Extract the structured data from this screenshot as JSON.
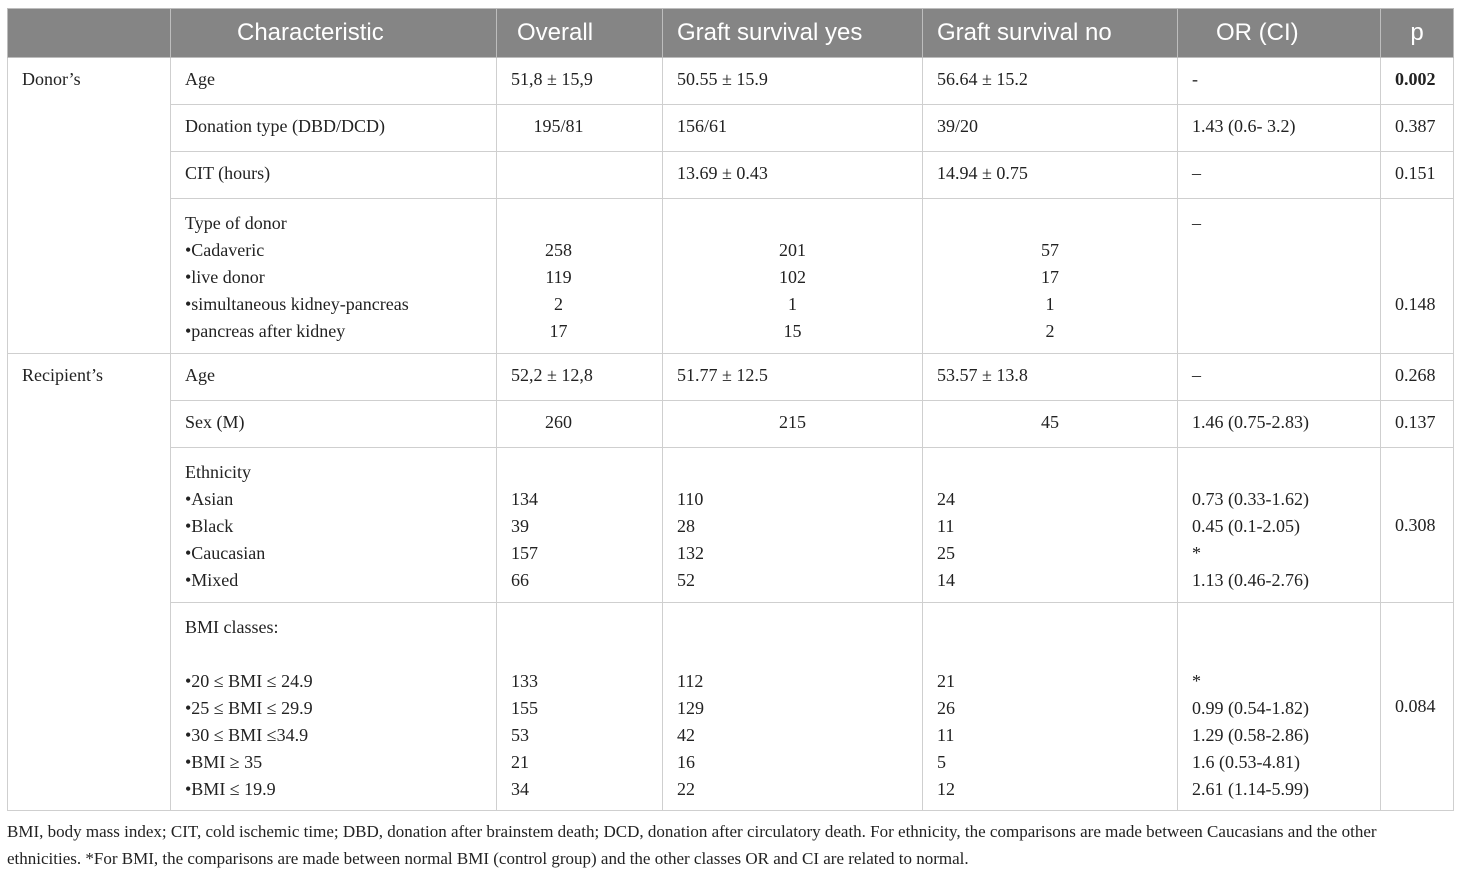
{
  "headers": [
    "Characteristic",
    "Overall",
    "Graft survival yes",
    "Graft survival no",
    "OR (CI)",
    "p"
  ],
  "donor": {
    "label": "Donor’s",
    "age": {
      "label": "Age",
      "overall": "51,8 ± 15,9",
      "yes": "50.55 ± 15.9",
      "no": "56.64 ± 15.2",
      "or": "-",
      "p": "0.002"
    },
    "donation_type": {
      "label": "Donation type (DBD/DCD)",
      "overall": "195/81",
      "yes": "156/61",
      "no": "39/20",
      "or": "1.43 (0.6- 3.2)",
      "p": "0.387"
    },
    "cit": {
      "label": "CIT (hours)",
      "overall": "",
      "yes": "13.69 ± 0.43",
      "no": "14.94 ± 0.75",
      "or": "–",
      "p": "0.151"
    },
    "type": {
      "label": "Type of donor",
      "or": "–",
      "p": "0.148",
      "items": [
        {
          "label": "•Cadaveric",
          "overall": "258",
          "yes": "201",
          "no": "57"
        },
        {
          "label": "•live donor",
          "overall": "119",
          "yes": "102",
          "no": "17"
        },
        {
          "label": "•simultaneous kidney-pancreas",
          "overall": "2",
          "yes": "1",
          "no": "1"
        },
        {
          "label": "•pancreas after kidney",
          "overall": "17",
          "yes": "15",
          "no": "2"
        }
      ]
    }
  },
  "recipient": {
    "label": "Recipient’s",
    "age": {
      "label": "Age",
      "overall": "52,2 ± 12,8",
      "yes": "51.77 ± 12.5",
      "no": "53.57 ± 13.8",
      "or": "–",
      "p": "0.268"
    },
    "sex": {
      "label": "Sex (M)",
      "overall": "260",
      "yes": "215",
      "no": "45",
      "or": "1.46 (0.75-2.83)",
      "p": "0.137"
    },
    "ethnicity": {
      "label": "Ethnicity",
      "p": "0.308",
      "items": [
        {
          "label": "•Asian",
          "overall": "134",
          "yes": "110",
          "no": "24",
          "or": "0.73 (0.33-1.62)"
        },
        {
          "label": "•Black",
          "overall": "39",
          "yes": "28",
          "no": "11",
          "or": "0.45 (0.1-2.05)"
        },
        {
          "label": "•Caucasian",
          "overall": "157",
          "yes": "132",
          "no": "25",
          "or": "*"
        },
        {
          "label": "•Mixed",
          "overall": "66",
          "yes": "52",
          "no": "14",
          "or": "1.13 (0.46-2.76)"
        }
      ]
    },
    "bmi": {
      "label": "BMI classes:",
      "p": "0.084",
      "items": [
        {
          "label": "•20 ≤ BMI ≤ 24.9",
          "overall": "133",
          "yes": "112",
          "no": "21",
          "or": "*"
        },
        {
          "label": "•25 ≤ BMI ≤ 29.9",
          "overall": "155",
          "yes": "129",
          "no": "26",
          "or": "0.99 (0.54-1.82)"
        },
        {
          "label": "•30 ≤ BMI ≤34.9",
          "overall": "53",
          "yes": "42",
          "no": "11",
          "or": "1.29 (0.58-2.86)"
        },
        {
          "label": "•BMI ≥ 35",
          "overall": "21",
          "yes": "16",
          "no": "5",
          "or": "1.6 (0.53-4.81)"
        },
        {
          "label": "•BMI ≤ 19.9",
          "overall": "34",
          "yes": "22",
          "no": "12",
          "or": "2.61 (1.14-5.99)"
        }
      ]
    }
  },
  "footnote": "BMI, body mass index; CIT, cold ischemic time; DBD, donation after brainstem death; DCD, donation after circulatory death. For ethnicity, the comparisons are made between Caucasians and the other ethnicities. *For BMI, the comparisons are made between normal BMI (control group) and the other classes OR and CI are related to normal."
}
